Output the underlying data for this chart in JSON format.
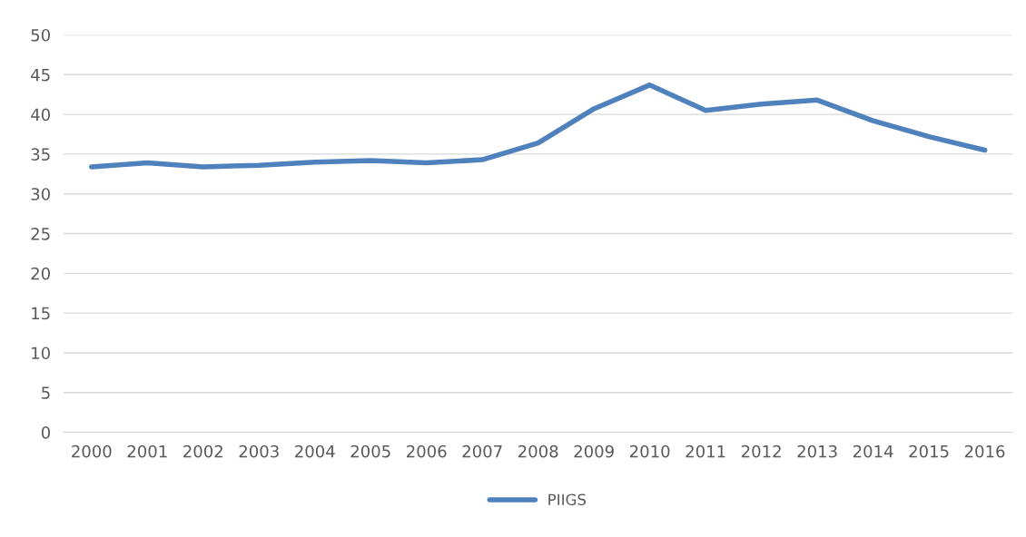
{
  "chart_data": {
    "type": "line",
    "categories": [
      "2000",
      "2001",
      "2002",
      "2003",
      "2004",
      "2005",
      "2006",
      "2007",
      "2008",
      "2009",
      "2010",
      "2011",
      "2012",
      "2013",
      "2014",
      "2015",
      "2016"
    ],
    "series": [
      {
        "name": "PIIGS",
        "color": "#4f81bd",
        "values": [
          33.4,
          33.9,
          33.4,
          33.6,
          34.0,
          34.2,
          33.9,
          34.3,
          36.4,
          40.7,
          43.7,
          40.5,
          41.3,
          41.8,
          39.2,
          37.2,
          35.5
        ]
      }
    ],
    "ylim": [
      0,
      50
    ],
    "yticks": [
      0,
      5,
      10,
      15,
      20,
      25,
      30,
      35,
      40,
      45,
      50
    ],
    "grid": "y",
    "legend": "bottom",
    "marker": "none",
    "line_style": "solid"
  }
}
